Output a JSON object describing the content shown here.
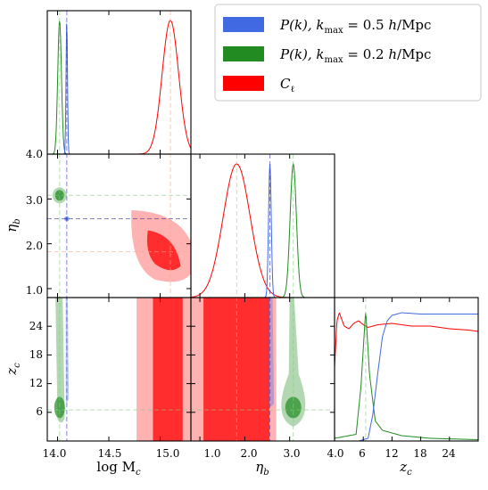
{
  "chart_data": {
    "type": "corner",
    "parameters": [
      "log M_c",
      "η_b",
      "z_c"
    ],
    "axis_labels": {
      "logMc": "log M",
      "logMc_sub": "c",
      "eta": "η",
      "eta_sub": "b",
      "zc": "z",
      "zc_sub": "c"
    },
    "ranges": {
      "logMc": [
        13.9,
        15.3
      ],
      "eta": [
        0.8,
        4.0
      ],
      "zc": [
        0.0,
        30.0
      ]
    },
    "ticks": {
      "logMc": [
        "14.0",
        "14.5",
        "15.0"
      ],
      "eta": [
        "1.0",
        "2.0",
        "3.0",
        "4.0"
      ],
      "zc": [
        "6",
        "12",
        "18",
        "24"
      ],
      "zc_bottom": [
        "4.0",
        "6",
        "12",
        "18",
        "24"
      ]
    },
    "legend": [
      {
        "name": "P(k), k_max = 0.5 h/Mpc",
        "color": "#4169e1"
      },
      {
        "name": "P(k), k_max = 0.2 h/Mpc",
        "color": "#228b22"
      },
      {
        "name": "C_ℓ",
        "color": "#ff0000"
      }
    ],
    "legend_text": {
      "pk": "P(k), k",
      "max": "max",
      "eq05": " = 0.5 ",
      "eq02": " = 0.2 ",
      "h": "h",
      "mpc": "/Mpc",
      "cl": "C",
      "ell": "ℓ"
    },
    "best_fit": {
      "blue": {
        "logMc": 14.09,
        "eta": 2.56,
        "zc": 6.5
      },
      "green": {
        "logMc": 14.02,
        "eta": 3.08,
        "zc": 6.5
      },
      "red": {
        "logMc": 15.1,
        "eta": 1.82
      }
    },
    "series": [
      {
        "color": "#4169e1",
        "logMc_peak": 14.09,
        "logMc_sigma": 0.007,
        "eta_peak": 2.56,
        "eta_sigma": 0.03,
        "zc_curve": [
          [
            0,
            0
          ],
          [
            5,
            0
          ],
          [
            7,
            0.02
          ],
          [
            8,
            0.2
          ],
          [
            9,
            0.5
          ],
          [
            10,
            0.78
          ],
          [
            11,
            0.9
          ],
          [
            12,
            0.94
          ],
          [
            14,
            0.96
          ],
          [
            18,
            0.95
          ],
          [
            22,
            0.95
          ],
          [
            26,
            0.95
          ],
          [
            30,
            0.95
          ]
        ]
      },
      {
        "color": "#228b22",
        "logMc_peak": 14.02,
        "logMc_sigma": 0.018,
        "eta_peak": 3.08,
        "eta_sigma": 0.07,
        "zc_curve": [
          [
            0,
            0.02
          ],
          [
            4.5,
            0.05
          ],
          [
            5.5,
            0.4
          ],
          [
            6.5,
            0.98
          ],
          [
            7.3,
            0.5
          ],
          [
            8.5,
            0.15
          ],
          [
            10,
            0.08
          ],
          [
            14,
            0.04
          ],
          [
            20,
            0.02
          ],
          [
            30,
            0.01
          ]
        ]
      },
      {
        "color": "#ff0000",
        "logMc_peak": 15.1,
        "logMc_sigma": 0.08,
        "eta_peak": 1.82,
        "eta_sigma": 0.3,
        "zc_curve": [
          [
            0,
            0.55
          ],
          [
            0.5,
            0.9
          ],
          [
            1,
            0.96
          ],
          [
            2,
            0.86
          ],
          [
            3,
            0.84
          ],
          [
            4,
            0.88
          ],
          [
            5,
            0.9
          ],
          [
            6,
            0.87
          ],
          [
            7,
            0.85
          ],
          [
            9,
            0.87
          ],
          [
            12,
            0.88
          ],
          [
            16,
            0.86
          ],
          [
            20,
            0.86
          ],
          [
            24,
            0.84
          ],
          [
            28,
            0.83
          ],
          [
            30,
            0.82
          ]
        ]
      }
    ]
  }
}
